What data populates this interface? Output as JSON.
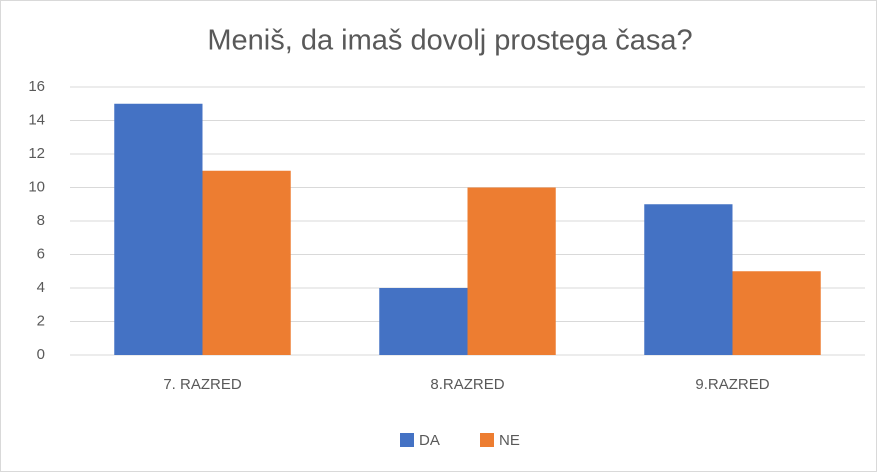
{
  "chart_data": {
    "type": "bar",
    "title": "Meniš, da imaš dovolj prostega časa?",
    "categories": [
      "7. RAZRED",
      "8.RAZRED",
      "9.RAZRED"
    ],
    "series": [
      {
        "name": "DA",
        "color": "#4472c4",
        "values": [
          15,
          4,
          9
        ]
      },
      {
        "name": "NE",
        "color": "#ed7d31",
        "values": [
          11,
          10,
          5
        ]
      }
    ],
    "ylim": [
      0,
      16
    ],
    "yticks": [
      0,
      2,
      4,
      6,
      8,
      10,
      12,
      14,
      16
    ],
    "grid": true,
    "legend": "bottom"
  }
}
